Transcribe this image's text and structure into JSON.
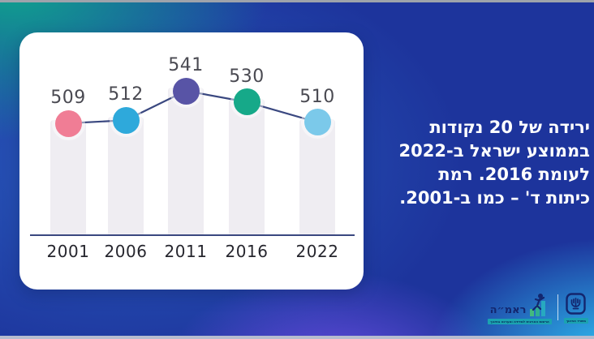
{
  "annotation": {
    "lines": [
      "ירידה של 20 נקודות",
      "בממוצע ישראל ב-2022",
      "לעומת 2016. רמת",
      "כיתות ד' – כמו ב-2001."
    ],
    "text_color": "#FFFFFF"
  },
  "chart_data": {
    "type": "line",
    "categories": [
      "2001",
      "2006",
      "2011",
      "2016",
      "2022"
    ],
    "values": [
      509,
      512,
      541,
      530,
      510
    ],
    "point_colors": [
      "#F07D95",
      "#2EA9DB",
      "#5854A6",
      "#16A989",
      "#7BC9EA"
    ],
    "line_color": "#3A4880",
    "axis_color": "#3A4880",
    "bar_color": "#EFEDF2",
    "value_label_color": "#4A4A52",
    "category_label_color": "#26262E",
    "data_labels": true,
    "legend": false,
    "grid": false,
    "ylim": [
      495,
      560
    ]
  },
  "footer": {
    "rama_name": "ראמ״ה",
    "rama_tagline": "הרשות הארצית למדידה והערכה בחינוך",
    "ministry_label": "משרד החינוך"
  },
  "background": {
    "teal": "#0FA78D",
    "blue": "#2A5FC0",
    "navy": "#1D349C",
    "purple": "#6C4EE4",
    "cyan": "#2EC1F2",
    "card": "#FFFFFF",
    "top_strip": "#9EA3AB",
    "bottom_strip": "#B6BCCF"
  }
}
